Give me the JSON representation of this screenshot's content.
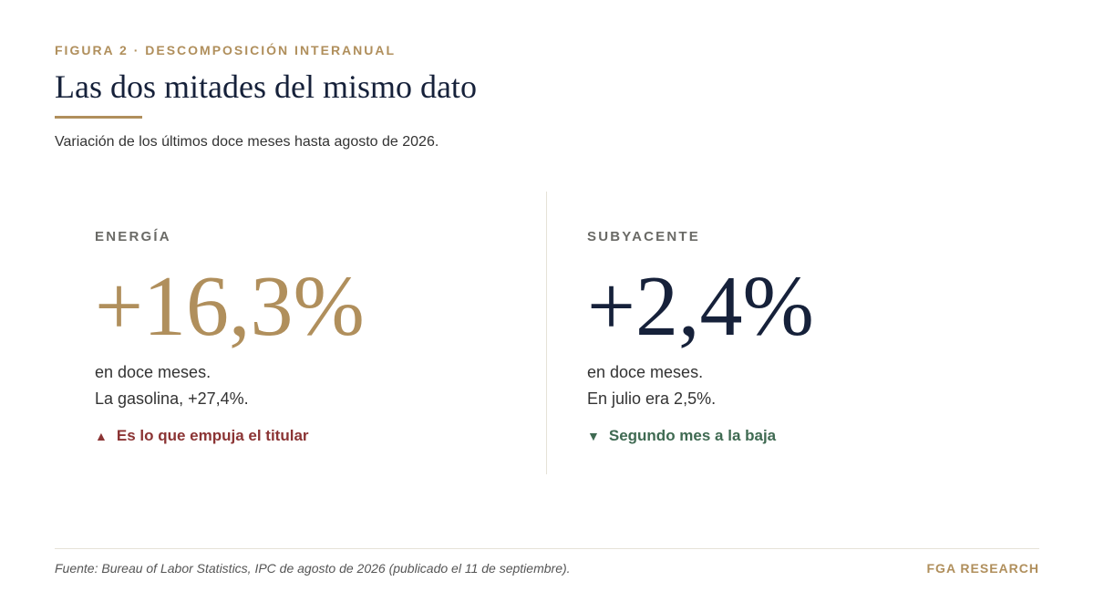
{
  "header": {
    "eyebrow": "FIGURA 2 · DESCOMPOSICIÓN INTERANUAL",
    "title": "Las dos mitades del mismo dato",
    "subtitle": "Variación de los últimos doce meses hasta agosto de 2026."
  },
  "panels": [
    {
      "label": "ENERGÍA",
      "value": "+16,3%",
      "line1": "en doce meses.",
      "line2": "La gasolina, +27,4%.",
      "signal_icon": "▲",
      "signal_text": "Es lo que empuja el titular",
      "accent_color": "#b08f5c",
      "signal_color": "#8b3434"
    },
    {
      "label": "SUBYACENTE",
      "value": "+2,4%",
      "line1": "en doce meses.",
      "line2": "En julio era 2,5%.",
      "signal_icon": "▼",
      "signal_text": "Segundo mes a la baja",
      "accent_color": "#16213a",
      "signal_color": "#3f6a52"
    }
  ],
  "footer": {
    "source": "Fuente: Bureau of Labor Statistics, IPC de agosto de 2026 (publicado el 11 de septiembre).",
    "brand": "FGA RESEARCH"
  }
}
